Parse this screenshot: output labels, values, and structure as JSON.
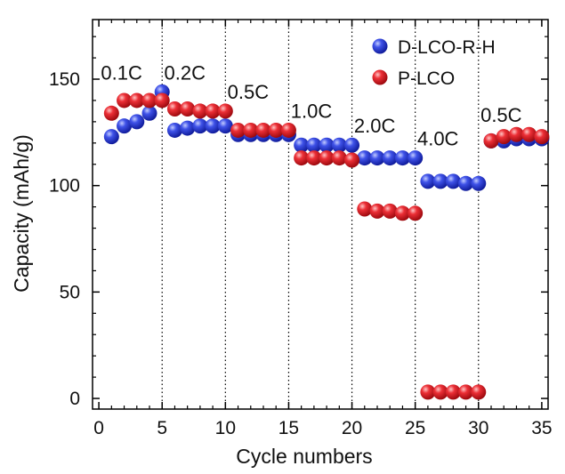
{
  "chart_data": {
    "type": "scatter",
    "title": "",
    "xlabel": "Cycle numbers",
    "ylabel": "Capacity (mAh/g)",
    "xlim": [
      -0.5,
      35.5
    ],
    "ylim": [
      -5,
      178
    ],
    "xticks": [
      0,
      5,
      10,
      15,
      20,
      25,
      30,
      35
    ],
    "yticks": [
      0,
      50,
      100,
      150
    ],
    "grid": "vertical dotted lines at x = 5, 10, 15, 20, 25, 30",
    "legend_position": "top-right",
    "series": [
      {
        "name": "D-LCO-R-H",
        "color": "#2f3fd6",
        "x": [
          1,
          2,
          3,
          4,
          5,
          6,
          7,
          8,
          9,
          10,
          11,
          12,
          13,
          14,
          15,
          16,
          17,
          18,
          19,
          20,
          21,
          22,
          23,
          24,
          25,
          26,
          27,
          28,
          29,
          30,
          31,
          32,
          33,
          34,
          35
        ],
        "y": [
          123,
          128,
          130,
          134,
          144,
          126,
          127,
          128,
          128,
          128,
          124,
          124,
          124,
          124,
          124,
          119,
          119,
          119,
          119,
          119,
          113,
          113,
          113,
          113,
          113,
          102,
          102,
          102,
          101,
          101,
          121,
          121,
          122,
          122,
          122
        ]
      },
      {
        "name": "P-LCO",
        "color": "#e0262e",
        "x": [
          1,
          2,
          3,
          4,
          5,
          6,
          7,
          8,
          9,
          10,
          11,
          12,
          13,
          14,
          15,
          16,
          17,
          18,
          19,
          20,
          21,
          22,
          23,
          24,
          25,
          26,
          27,
          28,
          29,
          30,
          31,
          32,
          33,
          34,
          35
        ],
        "y": [
          134,
          140,
          140,
          140,
          140,
          136,
          136,
          135,
          135,
          135,
          126,
          126,
          126,
          126,
          126,
          113,
          113,
          113,
          113,
          112,
          89,
          88,
          88,
          87,
          87,
          3,
          3,
          3,
          3,
          3,
          121,
          123,
          124,
          124,
          123
        ]
      }
    ],
    "annotations": [
      {
        "text": "0.1C",
        "x": 2.5
      },
      {
        "text": "0.2C",
        "x": 7.5
      },
      {
        "text": "0.5C",
        "x": 12.5
      },
      {
        "text": "1.0C",
        "x": 17.5
      },
      {
        "text": "2.0C",
        "x": 22.5
      },
      {
        "text": "4.0C",
        "x": 27.5
      },
      {
        "text": "0.5C",
        "x": 32.5
      }
    ]
  }
}
